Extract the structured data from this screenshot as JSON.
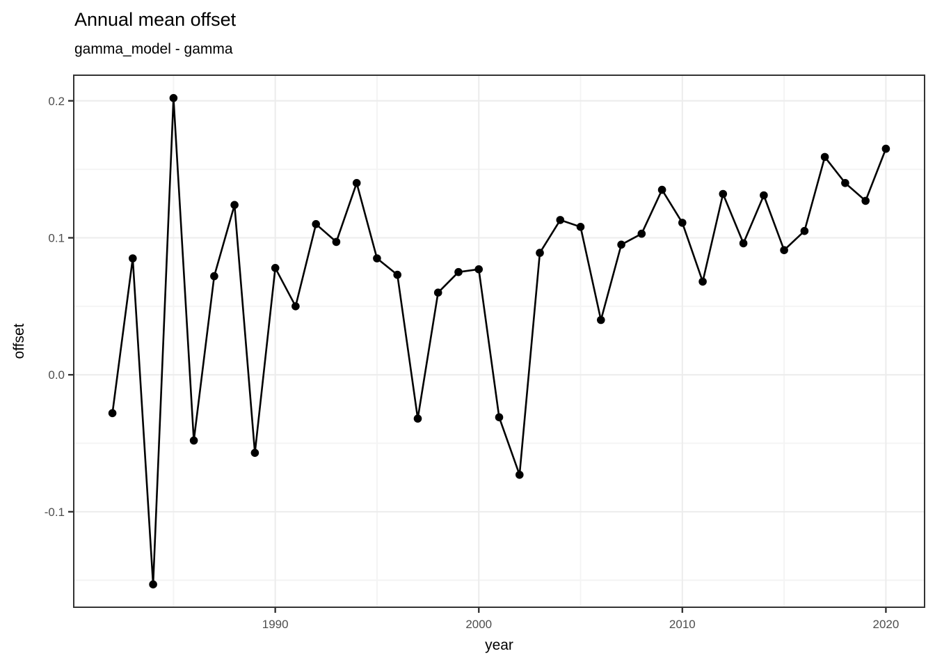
{
  "header": {
    "title": "Annual mean offset",
    "subtitle": "gamma_model - gamma"
  },
  "chart_data": {
    "type": "line",
    "title": "Annual mean offset",
    "subtitle": "gamma_model - gamma",
    "xlabel": "year",
    "ylabel": "offset",
    "x": [
      1982,
      1983,
      1984,
      1985,
      1986,
      1987,
      1988,
      1989,
      1990,
      1991,
      1992,
      1993,
      1994,
      1995,
      1996,
      1997,
      1998,
      1999,
      2000,
      2001,
      2002,
      2003,
      2004,
      2005,
      2006,
      2007,
      2008,
      2009,
      2010,
      2011,
      2012,
      2013,
      2014,
      2015,
      2016,
      2017,
      2018,
      2019,
      2020
    ],
    "series": [
      {
        "name": "offset",
        "values": [
          -0.028,
          0.085,
          -0.153,
          0.202,
          -0.048,
          0.072,
          0.124,
          -0.057,
          0.078,
          0.05,
          0.11,
          0.097,
          0.14,
          0.085,
          0.073,
          -0.032,
          0.06,
          0.075,
          0.077,
          -0.031,
          -0.073,
          0.089,
          0.113,
          0.108,
          0.04,
          0.095,
          0.103,
          0.135,
          0.111,
          0.068,
          0.132,
          0.096,
          0.131,
          0.091,
          0.105,
          0.159,
          0.14,
          0.127,
          0.165
        ]
      }
    ],
    "x_ticks": [
      {
        "value": 1990,
        "label": "1990"
      },
      {
        "value": 2000,
        "label": "2000"
      },
      {
        "value": 2010,
        "label": "2010"
      },
      {
        "value": 2020,
        "label": "2020"
      }
    ],
    "y_ticks": [
      {
        "value": 0.2,
        "label": "0.2"
      },
      {
        "value": 0.1,
        "label": "0.1"
      },
      {
        "value": 0.0,
        "label": "0.0"
      },
      {
        "value": -0.1,
        "label": "-0.1"
      }
    ],
    "x_minor_ticks": [
      1985,
      1995,
      2005,
      2015
    ],
    "y_minor_ticks": [
      0.15,
      0.05,
      -0.05,
      -0.15
    ],
    "xlim": [
      1980.1,
      2021.9
    ],
    "ylim": [
      -0.1697,
      0.2187
    ],
    "grid": "major+minor",
    "legend": "none",
    "marker": "filled-circle",
    "colors": {
      "line": "#000000",
      "point": "#000000",
      "grid_major": "#ececec",
      "grid_minor": "#f4f4f4",
      "panel_border": "#333333",
      "tick": "#333333",
      "tick_label": "#4d4d4d",
      "axis_title": "#000000",
      "title": "#000000"
    }
  }
}
